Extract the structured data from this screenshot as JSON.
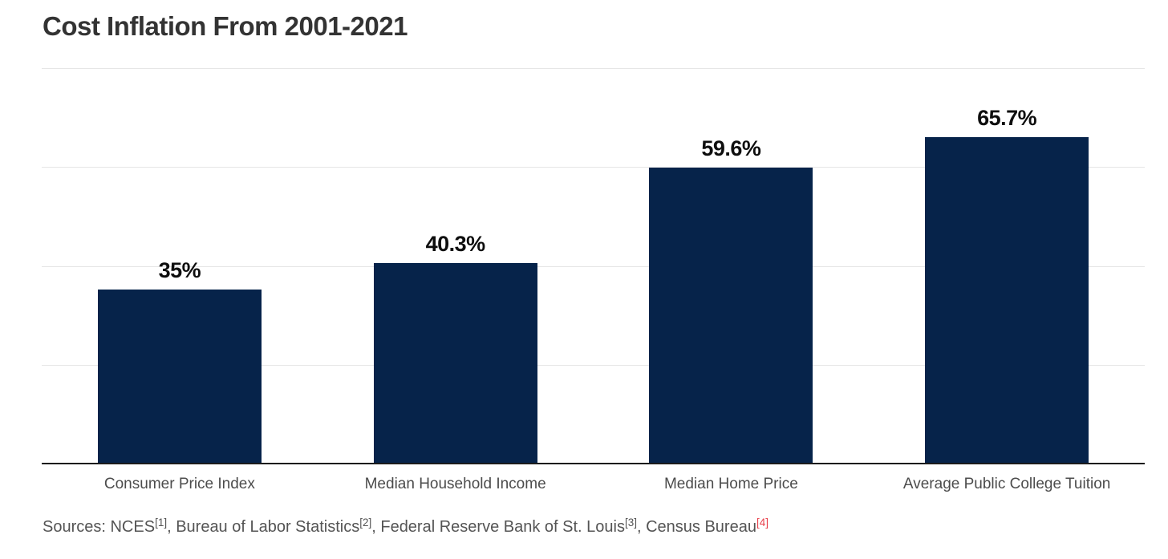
{
  "chart_data": {
    "type": "bar",
    "title": "Cost Inflation From 2001-2021",
    "categories": [
      "Consumer Price Index",
      "Median Household Income",
      "Median Home Price",
      "Average Public College Tuition"
    ],
    "values": [
      35,
      40.3,
      59.6,
      65.7
    ],
    "value_labels": [
      "35%",
      "40.3%",
      "59.6%",
      "65.7%"
    ],
    "xlabel": "",
    "ylabel": "",
    "ylim": [
      0,
      80
    ],
    "gridline_values": [
      20,
      40,
      60,
      80
    ],
    "grid": "horizontal-only, no y tick labels",
    "legend": "none",
    "bar_color": "#06234a",
    "axis_line_color": "#1c1c1c",
    "gridline_color": "#e6e6e6"
  },
  "footer": {
    "segments": [
      {
        "text": "Sources: NCES"
      },
      {
        "sup": "[1]"
      },
      {
        "text": ", Bureau of Labor Statistics"
      },
      {
        "sup": "[2]"
      },
      {
        "text": ", Federal Reserve Bank of St. Louis"
      },
      {
        "sup": "[3]"
      },
      {
        "text": ", Census Bureau"
      },
      {
        "sup": "[4]",
        "highlight": true
      }
    ],
    "highlight_color": "#e8404b",
    "text_color": "#545454"
  },
  "colors": {
    "background": "#ffffff",
    "title_text": "#333333",
    "value_label_text": "#0e0e0e",
    "category_label_text": "#4c4c4c"
  }
}
